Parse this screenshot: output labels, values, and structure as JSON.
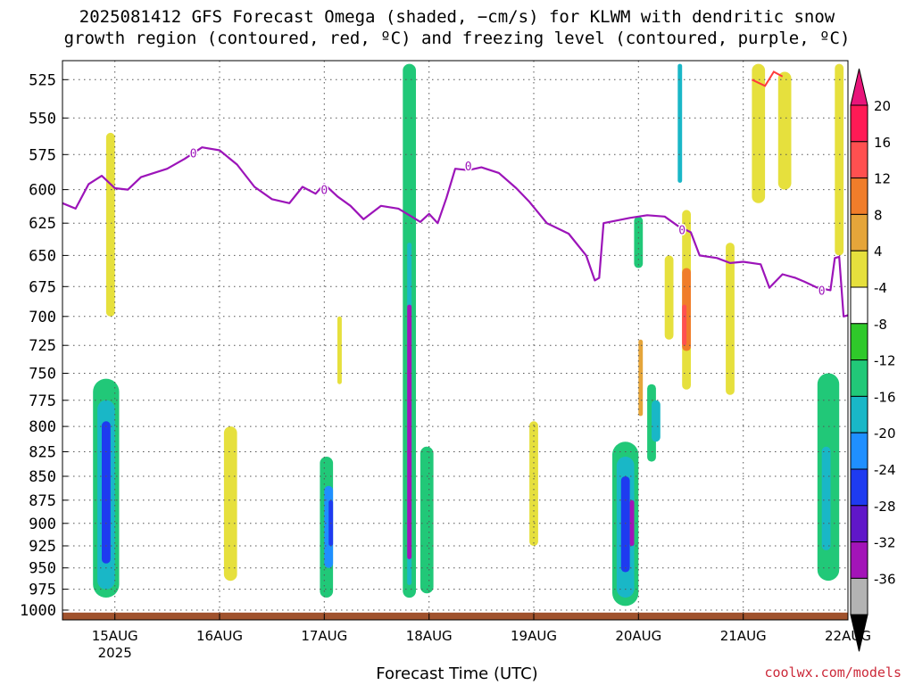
{
  "chart_data": {
    "type": "heatmap",
    "title": [
      "2025081412 GFS Forecast Omega (shaded, −cm/s) for KLWM with dendritic snow",
      "growth region (contoured, red, ºC) and freezing level (contoured, purple, ºC)"
    ],
    "xlabel": "Forecast Time (UTC)",
    "credit": "coolwx.com/models",
    "x_ticks": [
      "15AUG",
      "16AUG",
      "17AUG",
      "18AUG",
      "19AUG",
      "20AUG",
      "21AUG",
      "22AUG"
    ],
    "x_year_label": "2025",
    "xlim": [
      "2025-08-14 12Z",
      "2025-08-22 00Z"
    ],
    "y_ticks": [
      525,
      550,
      575,
      600,
      625,
      650,
      675,
      700,
      725,
      750,
      775,
      800,
      825,
      850,
      875,
      900,
      925,
      950,
      975,
      1000
    ],
    "ylim": [
      1012,
      513
    ],
    "y_scale": "log-pressure",
    "grid": "dotted",
    "colorbar": {
      "labels": [
        "20",
        "16",
        "12",
        "8",
        "4",
        "-4",
        "-8",
        "-12",
        "-16",
        "-20",
        "-24",
        "-28",
        "-32",
        "-36"
      ],
      "colors": [
        "#ff1a55",
        "#ff5050",
        "#f07d2a",
        "#e5a53a",
        "#e6e03d",
        "#ffffff",
        "#2fc92a",
        "#21c878",
        "#19b7c7",
        "#1f8fff",
        "#1e3bf0",
        "#6017c9",
        "#a314b8",
        "#b3b3b3"
      ],
      "top_arrow_color": "#e8157a",
      "bottom_arrow_color": "#000000"
    },
    "freezing_level": {
      "color": "#9c14b9",
      "contour_label": "0",
      "points": [
        [
          "08-14 12Z",
          610
        ],
        [
          "08-14 15Z",
          614
        ],
        [
          "08-14 18Z",
          596
        ],
        [
          "08-14 21Z",
          590
        ],
        [
          "08-15 00Z",
          599
        ],
        [
          "08-15 03Z",
          600
        ],
        [
          "08-15 06Z",
          591
        ],
        [
          "08-15 12Z",
          585
        ],
        [
          "08-15 16Z",
          578
        ],
        [
          "08-15 20Z",
          570
        ],
        [
          "08-16 00Z",
          572
        ],
        [
          "08-16 04Z",
          582
        ],
        [
          "08-16 08Z",
          598
        ],
        [
          "08-16 12Z",
          607
        ],
        [
          "08-16 16Z",
          610
        ],
        [
          "08-16 19Z",
          598
        ],
        [
          "08-16 22Z",
          603
        ],
        [
          "08-17 00Z",
          596
        ],
        [
          "08-17 03Z",
          605
        ],
        [
          "08-17 06Z",
          612
        ],
        [
          "08-17 09Z",
          622
        ],
        [
          "08-17 13Z",
          612
        ],
        [
          "08-17 17Z",
          614
        ],
        [
          "08-17 20Z",
          620
        ],
        [
          "08-17 22Z",
          624
        ],
        [
          "08-18 00Z",
          618
        ],
        [
          "08-18 02Z",
          625
        ],
        [
          "08-18 04Z",
          606
        ],
        [
          "08-18 06Z",
          585
        ],
        [
          "08-18 09Z",
          586
        ],
        [
          "08-18 12Z",
          584
        ],
        [
          "08-18 16Z",
          588
        ],
        [
          "08-18 20Z",
          599
        ],
        [
          "08-18 23Z",
          609
        ],
        [
          "08-19 03Z",
          625
        ],
        [
          "08-19 08Z",
          633
        ],
        [
          "08-19 12Z",
          650
        ],
        [
          "08-19 14Z",
          670
        ],
        [
          "08-19 15Z",
          668
        ],
        [
          "08-19 16Z",
          625
        ],
        [
          "08-19 22Z",
          621
        ],
        [
          "08-20 02Z",
          619
        ],
        [
          "08-20 06Z",
          620
        ],
        [
          "08-20 09Z",
          627
        ],
        [
          "08-20 12Z",
          632
        ],
        [
          "08-20 14Z",
          650
        ],
        [
          "08-20 18Z",
          652
        ],
        [
          "08-20 21Z",
          656
        ],
        [
          "08-21 00Z",
          655
        ],
        [
          "08-21 04Z",
          657
        ],
        [
          "08-21 06Z",
          676
        ],
        [
          "08-21 09Z",
          665
        ],
        [
          "08-21 12Z",
          668
        ],
        [
          "08-21 14Z",
          671
        ],
        [
          "08-21 17Z",
          676
        ],
        [
          "08-21 20Z",
          678
        ],
        [
          "08-21 21Z",
          652
        ],
        [
          "08-21 22Z",
          651
        ],
        [
          "08-21 23Z",
          700
        ],
        [
          "08-22 00Z",
          699
        ]
      ]
    },
    "dgz_contour": {
      "color": "#ff3c3c",
      "points": [
        [
          "08-21 02Z",
          525
        ],
        [
          "08-21 05Z",
          529
        ],
        [
          "08-21 07Z",
          520
        ],
        [
          "08-21 09Z",
          523
        ]
      ]
    },
    "surface": {
      "color": "#a0522d",
      "pressure_range": [
        1003,
        1010
      ]
    },
    "omega_regions": [
      {
        "t": [
          "08-14 22Z",
          "08-15 00Z"
        ],
        "p": [
          560,
          700
        ],
        "value": 5
      },
      {
        "t": [
          "08-14 19Z",
          "08-15 01Z"
        ],
        "p": [
          755,
          985
        ],
        "value": -8
      },
      {
        "t": [
          "08-14 20Z",
          "08-15 00Z"
        ],
        "p": [
          775,
          975
        ],
        "value": -14
      },
      {
        "t": [
          "08-14 21Z",
          "08-14 23Z"
        ],
        "p": [
          795,
          945
        ],
        "value": -22
      },
      {
        "t": [
          "08-16 01Z",
          "08-16 04Z"
        ],
        "p": [
          800,
          965
        ],
        "value": 5
      },
      {
        "t": [
          "08-16 23Z",
          "08-17 02Z"
        ],
        "p": [
          830,
          985
        ],
        "value": -9
      },
      {
        "t": [
          "08-17 00Z",
          "08-17 02Z"
        ],
        "p": [
          860,
          950
        ],
        "value": -17
      },
      {
        "t": [
          "08-17 01Z",
          "08-17 02Z"
        ],
        "p": [
          875,
          925
        ],
        "value": -23
      },
      {
        "t": [
          "08-17 03Z",
          "08-17 04Z"
        ],
        "p": [
          700,
          760
        ],
        "value": 5
      },
      {
        "t": [
          "08-17 18Z",
          "08-17 21Z"
        ],
        "p": [
          515,
          985
        ],
        "value": -8
      },
      {
        "t": [
          "08-17 19Z",
          "08-17 20Z"
        ],
        "p": [
          640,
          970
        ],
        "value": -14
      },
      {
        "t": [
          "08-17 19Z",
          "08-17 20Z"
        ],
        "p": [
          690,
          940
        ],
        "value": -30
      },
      {
        "t": [
          "08-17 22Z",
          "08-18 01Z"
        ],
        "p": [
          820,
          980
        ],
        "value": -8
      },
      {
        "t": [
          "08-18 23Z",
          "08-19 01Z"
        ],
        "p": [
          795,
          925
        ],
        "value": 5
      },
      {
        "t": [
          "08-19 18Z",
          "08-20 00Z"
        ],
        "p": [
          815,
          995
        ],
        "value": -8
      },
      {
        "t": [
          "08-19 19Z",
          "08-19 23Z"
        ],
        "p": [
          830,
          985
        ],
        "value": -15
      },
      {
        "t": [
          "08-19 20Z",
          "08-19 22Z"
        ],
        "p": [
          850,
          955
        ],
        "value": -21
      },
      {
        "t": [
          "08-19 22Z",
          "08-19 23Z"
        ],
        "p": [
          875,
          925
        ],
        "value": -29
      },
      {
        "t": [
          "08-19 23Z",
          "08-20 01Z"
        ],
        "p": [
          620,
          660
        ],
        "value": -8
      },
      {
        "t": [
          "08-20 00Z",
          "08-20 01Z"
        ],
        "p": [
          720,
          790
        ],
        "value": 10
      },
      {
        "t": [
          "08-20 02Z",
          "08-20 04Z"
        ],
        "p": [
          760,
          835
        ],
        "value": -8
      },
      {
        "t": [
          "08-20 03Z",
          "08-20 05Z"
        ],
        "p": [
          775,
          815
        ],
        "value": -13
      },
      {
        "t": [
          "08-20 06Z",
          "08-20 08Z"
        ],
        "p": [
          650,
          720
        ],
        "value": 5
      },
      {
        "t": [
          "08-20 10Z",
          "08-20 12Z"
        ],
        "p": [
          615,
          765
        ],
        "value": 6
      },
      {
        "t": [
          "08-20 10Z",
          "08-20 12Z"
        ],
        "p": [
          660,
          730
        ],
        "value": 14
      },
      {
        "t": [
          "08-20 10Z",
          "08-20 11Z"
        ],
        "p": [
          690,
          725
        ],
        "value": 18
      },
      {
        "t": [
          "08-20 09Z",
          "08-20 10Z"
        ],
        "p": [
          515,
          595
        ],
        "value": -12
      },
      {
        "t": [
          "08-20 20Z",
          "08-20 22Z"
        ],
        "p": [
          640,
          770
        ],
        "value": 5
      },
      {
        "t": [
          "08-21 02Z",
          "08-21 05Z"
        ],
        "p": [
          515,
          610
        ],
        "value": 5
      },
      {
        "t": [
          "08-21 08Z",
          "08-21 11Z"
        ],
        "p": [
          520,
          600
        ],
        "value": 5
      },
      {
        "t": [
          "08-21 17Z",
          "08-21 22Z"
        ],
        "p": [
          750,
          965
        ],
        "value": -9
      },
      {
        "t": [
          "08-21 18Z",
          "08-21 20Z"
        ],
        "p": [
          820,
          930
        ],
        "value": -13
      },
      {
        "t": [
          "08-21 21Z",
          "08-21 23Z"
        ],
        "p": [
          515,
          650
        ],
        "value": 6
      }
    ]
  }
}
